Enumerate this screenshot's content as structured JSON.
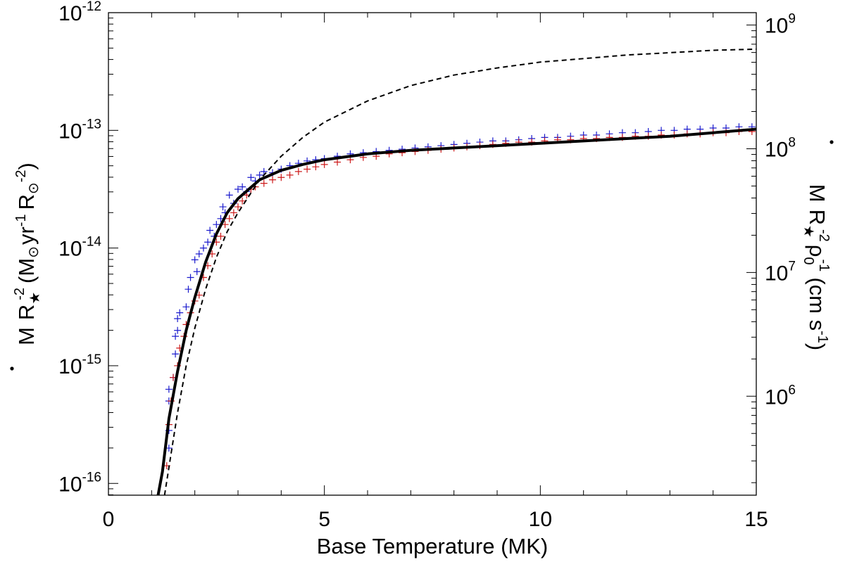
{
  "chart_data": {
    "type": "scatter",
    "xlabel": "Base Temperature (MK)",
    "ylabel_left": {
      "mdot": "M",
      "r": "R",
      "star": "★",
      "r_exp": "-2",
      "open": "(M",
      "sun1": "⊙",
      "yr": "yr",
      "yr_exp": "-1",
      "r2": "R",
      "sun2": "⊙",
      "r2_exp": "-2",
      "close": ")"
    },
    "ylabel_right": {
      "mdot": "M",
      "r": "R",
      "star": "★",
      "r_exp": "-2",
      "rho": "ρ",
      "rho_sub": "0",
      "rho_exp": "-1",
      "open": "(cm s",
      "s_exp": "-1",
      "close": ")"
    },
    "xlim": [
      0,
      15
    ],
    "ylim_left": [
      -16.1,
      -12.0
    ],
    "ylim_right": [
      5.2,
      9.1
    ],
    "y_scale": "log",
    "x_ticks": [
      {
        "value": 0,
        "label": "0"
      },
      {
        "value": 5,
        "label": "5"
      },
      {
        "value": 10,
        "label": "10"
      },
      {
        "value": 15,
        "label": "15"
      }
    ],
    "y_left_ticks": [
      {
        "value": -12,
        "base": "10",
        "exp": "-12"
      },
      {
        "value": -13,
        "base": "10",
        "exp": "-13"
      },
      {
        "value": -14,
        "base": "10",
        "exp": "-14"
      },
      {
        "value": -15,
        "base": "10",
        "exp": "-15"
      },
      {
        "value": -16,
        "base": "10",
        "exp": "-16"
      }
    ],
    "y_right_ticks": [
      {
        "value": 9,
        "base": "10",
        "exp": "9"
      },
      {
        "value": 8,
        "base": "10",
        "exp": "8"
      },
      {
        "value": 7,
        "base": "10",
        "exp": "7"
      },
      {
        "value": 6,
        "base": "10",
        "exp": "6"
      }
    ],
    "series": [
      {
        "style": "solid-thick",
        "color": "#000000",
        "x": [
          1.15,
          1.25,
          1.4,
          1.6,
          1.8,
          2.0,
          2.25,
          2.5,
          2.75,
          3.0,
          3.5,
          4.0,
          4.5,
          5.0,
          6.0,
          7.0,
          8.0,
          9.0,
          10.0,
          11.0,
          12.0,
          13.0,
          14.0,
          15.0
        ],
        "y": [
          -16.1,
          -15.9,
          -15.45,
          -15.05,
          -14.7,
          -14.42,
          -14.12,
          -13.88,
          -13.7,
          -13.58,
          -13.42,
          -13.34,
          -13.29,
          -13.25,
          -13.2,
          -13.17,
          -13.15,
          -13.13,
          -13.11,
          -13.09,
          -13.07,
          -13.05,
          -13.02,
          -12.99
        ]
      },
      {
        "style": "dashed",
        "color": "#000000",
        "x": [
          1.3,
          1.45,
          1.6,
          1.8,
          2.0,
          2.25,
          2.5,
          2.75,
          3.0,
          3.5,
          4.0,
          4.5,
          5.0,
          6.0,
          7.0,
          8.0,
          9.0,
          10.0,
          11.0,
          12.0,
          13.0,
          14.0,
          15.0
        ],
        "y": [
          -16.1,
          -15.75,
          -15.4,
          -15.0,
          -14.68,
          -14.35,
          -14.08,
          -13.86,
          -13.7,
          -13.42,
          -13.22,
          -13.06,
          -12.93,
          -12.75,
          -12.62,
          -12.53,
          -12.47,
          -12.42,
          -12.39,
          -12.36,
          -12.34,
          -12.32,
          -12.31
        ]
      },
      {
        "style": "plus-markers",
        "color": "#1a1acd",
        "x": [
          1.4,
          1.4,
          1.4,
          1.4,
          1.5,
          1.55,
          1.55,
          1.6,
          1.6,
          1.65,
          1.8,
          1.85,
          1.9,
          2.0,
          2.05,
          2.1,
          2.2,
          2.3,
          2.35,
          2.45,
          2.5,
          2.6,
          2.65,
          2.7,
          2.8,
          2.9,
          3.0,
          3.1,
          3.2,
          3.3,
          3.4,
          3.5,
          3.6,
          3.8,
          4.0,
          4.2,
          4.4,
          4.6,
          4.8,
          5.0,
          5.3,
          5.6,
          5.9,
          6.2,
          6.5,
          6.8,
          7.1,
          7.4,
          7.7,
          8.0,
          8.3,
          8.6,
          8.9,
          9.2,
          9.5,
          9.8,
          10.1,
          10.4,
          10.7,
          11.0,
          11.3,
          11.6,
          11.9,
          12.2,
          12.5,
          12.8,
          13.1,
          13.4,
          13.7,
          14.0,
          14.3,
          14.6,
          14.9
        ],
        "y": [
          -15.7,
          -15.55,
          -15.3,
          -15.2,
          -15.1,
          -14.9,
          -14.75,
          -14.6,
          -14.7,
          -14.55,
          -14.5,
          -14.35,
          -14.25,
          -14.1,
          -14.2,
          -14.05,
          -14.0,
          -13.95,
          -13.85,
          -13.9,
          -13.8,
          -13.75,
          -13.65,
          -13.7,
          -13.55,
          -13.62,
          -13.5,
          -13.48,
          -13.52,
          -13.4,
          -13.43,
          -13.38,
          -13.35,
          -13.36,
          -13.33,
          -13.3,
          -13.28,
          -13.26,
          -13.25,
          -13.24,
          -13.22,
          -13.2,
          -13.19,
          -13.18,
          -13.17,
          -13.16,
          -13.15,
          -13.14,
          -13.13,
          -13.12,
          -13.11,
          -13.1,
          -13.09,
          -13.09,
          -13.08,
          -13.07,
          -13.06,
          -13.06,
          -13.05,
          -13.04,
          -13.04,
          -13.03,
          -13.02,
          -13.02,
          -13.01,
          -13.0,
          -13.0,
          -12.99,
          -12.99,
          -12.98,
          -12.98,
          -12.97,
          -12.97
        ]
      },
      {
        "style": "plus-markers",
        "color": "#cd1a1a",
        "x": [
          1.35,
          1.4,
          1.45,
          1.5,
          1.6,
          1.65,
          1.75,
          1.8,
          1.9,
          2.0,
          2.1,
          2.2,
          2.3,
          2.4,
          2.5,
          2.6,
          2.7,
          2.8,
          2.9,
          3.0,
          3.1,
          3.2,
          3.3,
          3.4,
          3.6,
          3.8,
          4.0,
          4.2,
          4.4,
          4.6,
          4.8,
          5.0,
          5.3,
          5.6,
          5.9,
          6.2,
          6.5,
          6.8,
          7.1,
          7.4,
          7.7,
          8.0,
          8.3,
          8.6,
          8.9,
          9.2,
          9.5,
          9.8,
          10.1,
          10.4,
          10.7,
          11.0,
          11.3,
          11.6,
          11.9,
          12.2,
          12.5,
          12.8,
          13.1,
          13.4,
          13.7,
          14.0,
          14.3,
          14.6,
          14.9
        ],
        "y": [
          -15.85,
          -15.5,
          -15.3,
          -15.1,
          -15.0,
          -14.85,
          -14.75,
          -14.65,
          -14.55,
          -14.45,
          -14.4,
          -14.25,
          -14.15,
          -14.05,
          -13.95,
          -13.9,
          -13.8,
          -13.75,
          -13.7,
          -13.65,
          -13.6,
          -13.55,
          -13.5,
          -13.48,
          -13.45,
          -13.42,
          -13.4,
          -13.38,
          -13.35,
          -13.33,
          -13.31,
          -13.29,
          -13.27,
          -13.25,
          -13.23,
          -13.22,
          -13.2,
          -13.19,
          -13.18,
          -13.17,
          -13.16,
          -13.15,
          -13.14,
          -13.13,
          -13.12,
          -13.11,
          -13.1,
          -13.1,
          -13.09,
          -13.08,
          -13.08,
          -13.07,
          -13.07,
          -13.06,
          -13.06,
          -13.05,
          -13.05,
          -13.04,
          -13.04,
          -13.03,
          -13.03,
          -13.02,
          -13.02,
          -13.01,
          -13.01
        ]
      }
    ]
  }
}
